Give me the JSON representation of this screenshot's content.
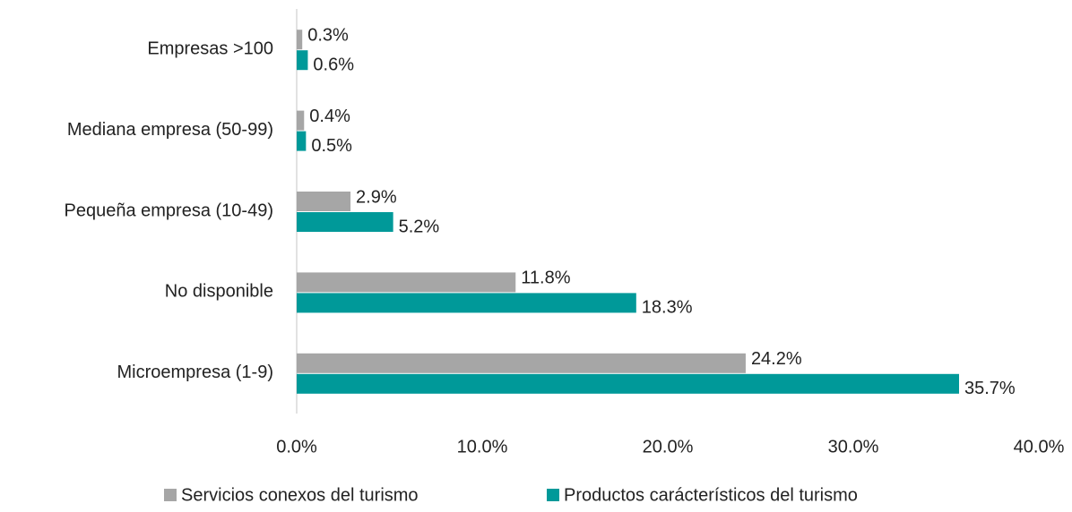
{
  "chart_data": {
    "type": "hbar",
    "categories": [
      "Empresas >100",
      "Mediana empresa (50-99)",
      "Pequeña empresa (10-49)",
      "No disponible",
      "Microempresa (1-9)"
    ],
    "series": [
      {
        "name": "Servicios conexos del turismo",
        "color": "#a6a6a6",
        "values": [
          0.3,
          0.4,
          2.9,
          11.8,
          24.2
        ],
        "value_labels": [
          "0.3%",
          "0.4%",
          "2.9%",
          "11.8%",
          "24.2%"
        ]
      },
      {
        "name": "Productos carácterísticos del turismo",
        "color": "#009999",
        "values": [
          0.6,
          0.5,
          5.2,
          18.3,
          35.7
        ],
        "value_labels": [
          "0.6%",
          "0.5%",
          "5.2%",
          "18.3%",
          "35.7%"
        ]
      }
    ],
    "xlim": [
      0,
      40
    ],
    "xticks": [
      {
        "value": 0,
        "label": "0.0%"
      },
      {
        "value": 10,
        "label": "10.0%"
      },
      {
        "value": 20,
        "label": "20.0%"
      },
      {
        "value": 30,
        "label": "30.0%"
      },
      {
        "value": 40,
        "label": "40.0%"
      }
    ],
    "legend": "bottom"
  }
}
